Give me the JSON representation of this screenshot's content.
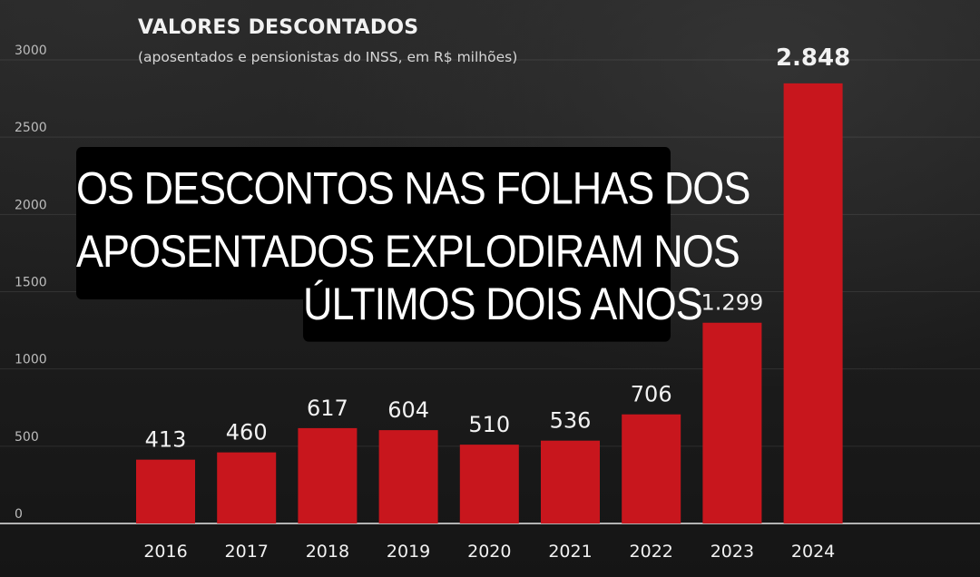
{
  "title": "VALORES DESCONTADOS",
  "subtitle": "(aposentados e pensionistas do INSS, em R$ milhões)",
  "caption": {
    "line1": "OS DESCONTOS NAS FOLHAS DOS",
    "line2": "APOSENTADOS EXPLODIRAM NOS",
    "line3": "ÚLTIMOS DOIS ANOS"
  },
  "chart_data": {
    "type": "bar",
    "title": "VALORES DESCONTADOS",
    "subtitle": "(aposentados e pensionistas do INSS, em R$ milhões)",
    "categories": [
      "2016",
      "2017",
      "2018",
      "2019",
      "2020",
      "2021",
      "2022",
      "2023",
      "2024"
    ],
    "values": [
      413,
      460,
      617,
      604,
      510,
      536,
      706,
      1299,
      2848
    ],
    "value_labels": [
      "413",
      "460",
      "617",
      "604",
      "510",
      "536",
      "706",
      "1.299",
      "2.848"
    ],
    "yticks": [
      0,
      500,
      1000,
      1500,
      2000,
      2500,
      3000
    ],
    "ylim": [
      0,
      3000
    ],
    "grid": true,
    "bar_color": "#c8161d",
    "highlight_label": "2.848"
  }
}
